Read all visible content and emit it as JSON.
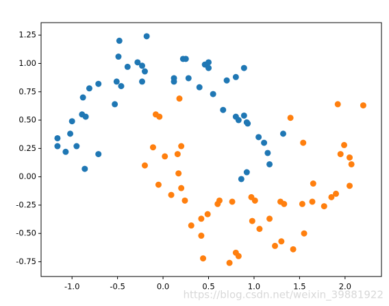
{
  "chart_data": {
    "type": "scatter",
    "xlim": [
      -1.34,
      2.4
    ],
    "ylim": [
      -0.88,
      1.36
    ],
    "xticks": [
      {
        "value": -1.0,
        "label": "-1.0"
      },
      {
        "value": -0.5,
        "label": "-0.5"
      },
      {
        "value": 0.0,
        "label": "0.0"
      },
      {
        "value": 0.5,
        "label": "0.5"
      },
      {
        "value": 1.0,
        "label": "1.0"
      },
      {
        "value": 1.5,
        "label": "1.5"
      },
      {
        "value": 2.0,
        "label": "2.0"
      }
    ],
    "yticks": [
      -0.75,
      {
        "value": -0.5,
        "label": "-0.50"
      },
      -0.25,
      {
        "value": 0,
        "label": "0.00"
      },
      0.25,
      {
        "value": 0.5,
        "label": "0.50"
      },
      0.75,
      {
        "value": 1.0,
        "label": "1.00"
      },
      1.25
    ],
    "grid": false,
    "series": [
      {
        "color": "#1f77b4",
        "x": [
          -1.16,
          -1.16,
          -1.07,
          -1.02,
          -1.0,
          -0.95,
          -0.89,
          -0.85,
          -0.88,
          -0.86,
          -0.81,
          -0.71,
          -0.71,
          -0.53,
          -0.51,
          -0.49,
          -0.48,
          -0.46,
          -0.39,
          -0.28,
          -0.23,
          -0.2,
          -0.23,
          -0.18,
          0.12,
          0.12,
          0.22,
          0.25,
          0.28,
          0.4,
          0.46,
          0.5,
          0.5,
          0.55,
          0.66,
          0.7,
          0.8,
          0.89,
          0.8,
          0.83,
          0.89,
          0.92,
          0.93,
          1.05,
          1.11,
          1.15,
          1.17,
          1.32,
          0.92,
          0.86
        ],
        "values": [
          0.34,
          0.27,
          0.22,
          0.38,
          0.49,
          0.27,
          0.55,
          0.53,
          0.7,
          0.07,
          0.78,
          0.82,
          0.2,
          0.64,
          0.84,
          1.06,
          1.2,
          0.8,
          0.97,
          1.01,
          0.98,
          0.93,
          0.84,
          1.24,
          0.87,
          0.84,
          1.04,
          1.04,
          0.87,
          0.79,
          0.99,
          1.01,
          0.96,
          0.73,
          0.59,
          0.85,
          0.88,
          0.96,
          0.53,
          0.5,
          0.54,
          0.48,
          0.47,
          0.35,
          0.3,
          0.21,
          0.11,
          0.38,
          0.04,
          -0.02
        ]
      },
      {
        "color": "#ff7f0e",
        "x": [
          0.18,
          -0.08,
          -0.04,
          -0.11,
          -0.2,
          -0.05,
          0.02,
          0.2,
          0.16,
          0.17,
          0.2,
          0.24,
          0.09,
          0.31,
          0.42,
          0.49,
          0.42,
          0.44,
          0.62,
          0.6,
          0.76,
          0.73,
          0.8,
          0.83,
          0.97,
          1.01,
          0.98,
          1.06,
          1.17,
          1.23,
          1.29,
          1.33,
          1.3,
          1.4,
          1.43,
          1.53,
          1.54,
          1.55,
          1.64,
          1.65,
          1.77,
          1.85,
          1.9,
          1.92,
          1.95,
          1.99,
          2.05,
          2.05,
          2.07,
          2.2
        ],
        "values": [
          0.69,
          0.55,
          0.53,
          0.26,
          0.1,
          -0.07,
          0.18,
          0.27,
          0.2,
          0.03,
          -0.1,
          -0.21,
          -0.16,
          -0.43,
          -0.37,
          -0.33,
          -0.52,
          -0.72,
          -0.21,
          -0.24,
          -0.22,
          -0.76,
          -0.67,
          -0.7,
          -0.18,
          -0.21,
          -0.39,
          -0.46,
          -0.37,
          -0.61,
          -0.22,
          -0.24,
          -0.57,
          0.52,
          -0.64,
          -0.24,
          0.3,
          -0.5,
          -0.22,
          -0.06,
          -0.26,
          -0.18,
          -0.15,
          0.64,
          0.2,
          0.28,
          -0.08,
          0.17,
          0.11,
          0.63
        ]
      }
    ],
    "watermark": "https://blog.csdn.net/weixin_39881922"
  }
}
